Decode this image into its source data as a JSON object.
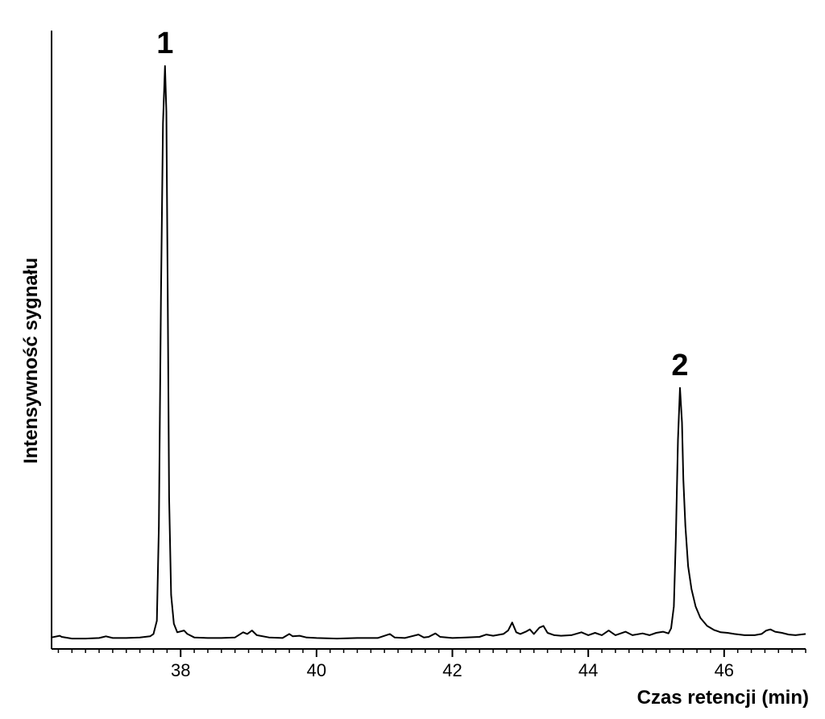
{
  "chart_data": {
    "type": "line",
    "xlabel": "Czas retencji (min)",
    "ylabel": "Intensywność sygnału",
    "xlim": [
      36.1,
      47.2
    ],
    "ylim": [
      0,
      100
    ],
    "x_ticks": [
      38,
      40,
      42,
      44,
      46
    ],
    "x_tick_labels": [
      "38",
      "40",
      "42",
      "44",
      "46"
    ],
    "y_ticks_visible": false,
    "grid": false,
    "annotations": [
      {
        "text": "1",
        "x": 37.77,
        "y": 100
      },
      {
        "text": "2",
        "x": 45.35,
        "y": 44
      }
    ],
    "series": [
      {
        "points": [
          [
            36.1,
            0.6
          ],
          [
            36.22,
            0.9
          ],
          [
            36.25,
            0.7
          ],
          [
            36.4,
            0.4
          ],
          [
            36.6,
            0.4
          ],
          [
            36.8,
            0.5
          ],
          [
            36.9,
            0.8
          ],
          [
            37.0,
            0.5
          ],
          [
            37.2,
            0.5
          ],
          [
            37.4,
            0.6
          ],
          [
            37.55,
            0.8
          ],
          [
            37.6,
            1.2
          ],
          [
            37.65,
            3.5
          ],
          [
            37.68,
            20
          ],
          [
            37.71,
            60
          ],
          [
            37.74,
            90
          ],
          [
            37.77,
            100
          ],
          [
            37.79,
            92
          ],
          [
            37.81,
            60
          ],
          [
            37.83,
            25
          ],
          [
            37.86,
            8
          ],
          [
            37.9,
            3
          ],
          [
            37.95,
            1.5
          ],
          [
            38.05,
            1.8
          ],
          [
            38.1,
            1.2
          ],
          [
            38.2,
            0.6
          ],
          [
            38.4,
            0.5
          ],
          [
            38.6,
            0.5
          ],
          [
            38.8,
            0.6
          ],
          [
            38.92,
            1.5
          ],
          [
            38.98,
            1.2
          ],
          [
            39.05,
            1.8
          ],
          [
            39.12,
            1.0
          ],
          [
            39.3,
            0.6
          ],
          [
            39.5,
            0.5
          ],
          [
            39.6,
            1.2
          ],
          [
            39.65,
            0.8
          ],
          [
            39.75,
            0.9
          ],
          [
            39.85,
            0.6
          ],
          [
            40.0,
            0.5
          ],
          [
            40.3,
            0.4
          ],
          [
            40.6,
            0.5
          ],
          [
            40.9,
            0.5
          ],
          [
            41.08,
            1.2
          ],
          [
            41.15,
            0.6
          ],
          [
            41.3,
            0.5
          ],
          [
            41.5,
            1.1
          ],
          [
            41.58,
            0.6
          ],
          [
            41.65,
            0.7
          ],
          [
            41.75,
            1.3
          ],
          [
            41.82,
            0.7
          ],
          [
            42.0,
            0.5
          ],
          [
            42.2,
            0.6
          ],
          [
            42.4,
            0.7
          ],
          [
            42.5,
            1.1
          ],
          [
            42.6,
            0.9
          ],
          [
            42.75,
            1.2
          ],
          [
            42.82,
            1.8
          ],
          [
            42.88,
            3.2
          ],
          [
            42.94,
            1.5
          ],
          [
            43.0,
            1.2
          ],
          [
            43.08,
            1.6
          ],
          [
            43.14,
            2.0
          ],
          [
            43.2,
            1.2
          ],
          [
            43.28,
            2.3
          ],
          [
            43.34,
            2.6
          ],
          [
            43.4,
            1.4
          ],
          [
            43.5,
            1.0
          ],
          [
            43.6,
            0.9
          ],
          [
            43.75,
            1.0
          ],
          [
            43.9,
            1.5
          ],
          [
            44.0,
            1.0
          ],
          [
            44.1,
            1.4
          ],
          [
            44.2,
            1.0
          ],
          [
            44.3,
            1.8
          ],
          [
            44.4,
            1.0
          ],
          [
            44.55,
            1.6
          ],
          [
            44.65,
            1.0
          ],
          [
            44.8,
            1.3
          ],
          [
            44.9,
            1.0
          ],
          [
            45.0,
            1.4
          ],
          [
            45.1,
            1.6
          ],
          [
            45.18,
            1.3
          ],
          [
            45.22,
            2.2
          ],
          [
            45.26,
            6
          ],
          [
            45.29,
            18
          ],
          [
            45.32,
            35
          ],
          [
            45.35,
            44
          ],
          [
            45.38,
            38
          ],
          [
            45.4,
            28
          ],
          [
            45.43,
            20
          ],
          [
            45.47,
            13
          ],
          [
            45.52,
            9
          ],
          [
            45.58,
            6
          ],
          [
            45.65,
            4
          ],
          [
            45.75,
            2.6
          ],
          [
            45.85,
            1.9
          ],
          [
            45.95,
            1.5
          ],
          [
            46.05,
            1.4
          ],
          [
            46.15,
            1.2
          ],
          [
            46.3,
            1.0
          ],
          [
            46.45,
            1.0
          ],
          [
            46.55,
            1.2
          ],
          [
            46.62,
            1.8
          ],
          [
            46.68,
            2.0
          ],
          [
            46.75,
            1.6
          ],
          [
            46.85,
            1.4
          ],
          [
            46.95,
            1.1
          ],
          [
            47.05,
            1.0
          ],
          [
            47.2,
            1.2
          ]
        ]
      }
    ]
  }
}
